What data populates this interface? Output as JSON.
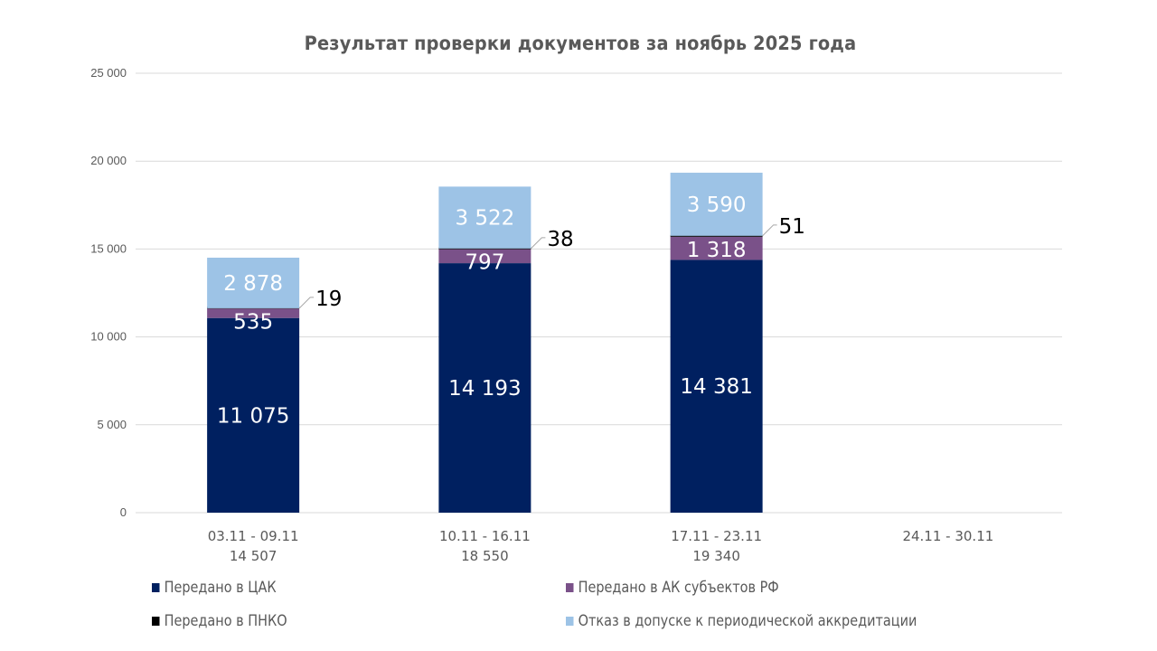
{
  "chart_data": {
    "type": "bar",
    "stacked": true,
    "title": "Результат проверки документов за ноябрь 2025 года",
    "xlabel": "",
    "ylabel": "",
    "ylim": [
      0,
      25000
    ],
    "yticks": [
      0,
      5000,
      10000,
      15000,
      20000,
      25000
    ],
    "ytick_labels": [
      "0",
      "5 000",
      "10 000",
      "15 000",
      "20 000",
      "25 000"
    ],
    "grid": true,
    "categories": [
      "03.11 - 09.11",
      "10.11 - 16.11",
      "17.11 - 23.11",
      "24.11 - 30.11"
    ],
    "category_totals": [
      "14 507",
      "18 550",
      "19 340",
      ""
    ],
    "series": [
      {
        "name": "Передано в ЦАК",
        "color": "#002060",
        "values": [
          11075,
          14193,
          14381,
          null
        ],
        "labels": [
          "11 075",
          "14 193",
          "14 381",
          ""
        ]
      },
      {
        "name": "Передано в АК субъектов РФ",
        "color": "#7A5189",
        "values": [
          535,
          797,
          1318,
          null
        ],
        "labels": [
          "535",
          "797",
          "1 318",
          ""
        ]
      },
      {
        "name": "Передано в ПНКО",
        "color": "#000000",
        "values": [
          19,
          38,
          51,
          null
        ],
        "labels": [
          "19",
          "38",
          "51",
          ""
        ]
      },
      {
        "name": "Отказ в допуске к периодической аккредитации",
        "color": "#9DC3E6",
        "values": [
          2878,
          3522,
          3590,
          null
        ],
        "labels": [
          "2 878",
          "3 522",
          "3 590",
          ""
        ]
      }
    ],
    "legend_position": "bottom",
    "legend_order": [
      0,
      1,
      2,
      3
    ]
  }
}
